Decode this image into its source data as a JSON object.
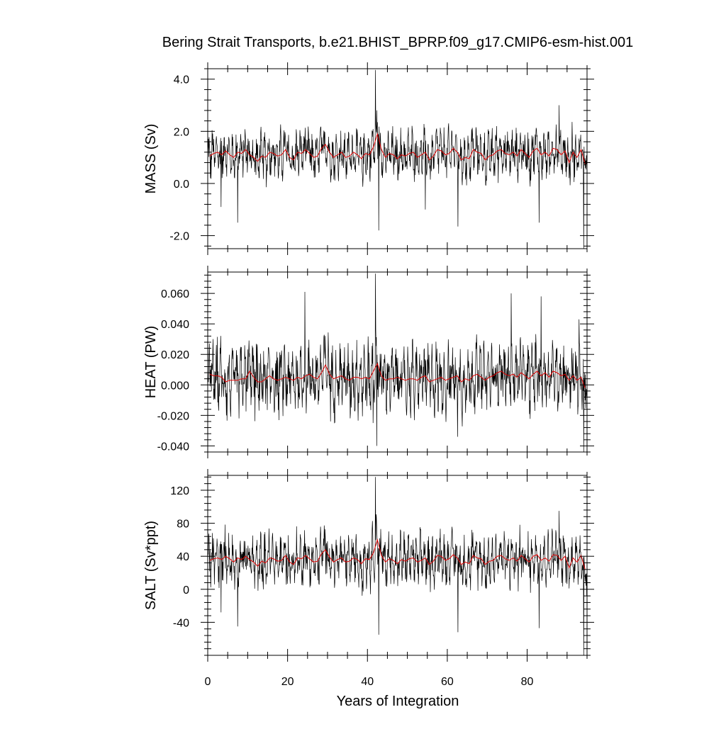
{
  "chart_data": {
    "type": "line",
    "title": "Bering Strait Transports, b.e21.BHIST_BPRP.f09_g17.CMIP6-esm-hist.001",
    "xlabel": "Years of Integration",
    "x_ticks": [
      "0",
      "20",
      "40",
      "60",
      "80"
    ],
    "xlim": [
      0,
      95
    ],
    "colors": {
      "monthly": "#000000",
      "annual": "#e00000"
    },
    "panels": [
      {
        "ylabel": "MASS (Sv)",
        "ylim": [
          -2.5,
          4.4
        ],
        "y_ticks": [
          {
            "v": 4.0,
            "label": "4.0"
          },
          {
            "v": 2.0,
            "label": "2.0"
          },
          {
            "v": 0.0,
            "label": "0.0"
          },
          {
            "v": -2.0,
            "label": "-2.0"
          }
        ],
        "annual": [
          1.05,
          1.15,
          1.2,
          1.1,
          1.25,
          1.1,
          1.0,
          1.2,
          1.15,
          1.3,
          1.1,
          1.0,
          0.85,
          1.05,
          1.0,
          1.2,
          1.15,
          1.05,
          1.1,
          1.3,
          1.0,
          0.9,
          1.2,
          1.15,
          1.3,
          1.15,
          1.0,
          1.05,
          1.35,
          1.5,
          1.2,
          1.0,
          1.1,
          1.2,
          1.0,
          1.05,
          1.2,
          1.1,
          0.95,
          1.15,
          1.1,
          1.4,
          1.9,
          1.3,
          1.0,
          1.15,
          1.1,
          0.95,
          1.1,
          1.05,
          1.15,
          1.2,
          1.0,
          1.1,
          1.2,
          0.9,
          1.05,
          1.3,
          1.25,
          1.1,
          1.15,
          1.35,
          1.2,
          0.9,
          1.0,
          0.95,
          1.3,
          1.2,
          1.15,
          0.9,
          1.05,
          1.1,
          1.25,
          1.3,
          1.15,
          1.1,
          1.2,
          1.05,
          1.3,
          1.15,
          1.0,
          1.25,
          1.35,
          1.1,
          1.2,
          1.05,
          1.35,
          1.3,
          1.1,
          1.25,
          0.8,
          1.2,
          1.0,
          1.3,
          0.75
        ],
        "monthly_spread": 0.6,
        "extremes": [
          {
            "x": 42.0,
            "v": 4.35
          },
          {
            "x": 42.4,
            "v": 1.9
          },
          {
            "x": 42.8,
            "v": -1.8
          },
          {
            "x": 7.5,
            "v": -1.5
          },
          {
            "x": 62.7,
            "v": -1.65
          },
          {
            "x": 83.0,
            "v": -1.5
          },
          {
            "x": 88.0,
            "v": 3.0
          },
          {
            "x": 94.2,
            "v": -2.5
          },
          {
            "x": 54.5,
            "v": -1.0
          },
          {
            "x": 3.3,
            "v": -0.9
          }
        ]
      },
      {
        "ylabel": "HEAT (PW)",
        "ylim": [
          -0.044,
          0.074
        ],
        "y_ticks": [
          {
            "v": 0.06,
            "label": "0.060"
          },
          {
            "v": 0.04,
            "label": "0.040"
          },
          {
            "v": 0.02,
            "label": "0.020"
          },
          {
            "v": 0.0,
            "label": "0.000"
          },
          {
            "v": -0.02,
            "label": "-0.020"
          },
          {
            "v": -0.04,
            "label": "-0.040"
          }
        ],
        "annual": [
          0.007,
          0.006,
          0.006,
          0.005,
          0.002,
          0.003,
          0.003,
          0.003,
          0.004,
          0.004,
          0.009,
          0.005,
          0.002,
          0.002,
          0.004,
          0.006,
          0.004,
          0.003,
          0.004,
          0.005,
          0.004,
          0.003,
          0.005,
          0.004,
          0.006,
          0.007,
          0.005,
          0.004,
          0.008,
          0.013,
          0.007,
          0.004,
          0.005,
          0.006,
          0.004,
          0.003,
          0.005,
          0.005,
          0.004,
          0.005,
          0.004,
          0.009,
          0.014,
          0.006,
          0.003,
          0.004,
          0.004,
          0.005,
          0.004,
          0.003,
          0.004,
          0.004,
          0.003,
          0.005,
          0.006,
          0.002,
          0.003,
          0.004,
          0.005,
          0.003,
          0.004,
          0.005,
          0.006,
          0.002,
          0.004,
          0.003,
          0.006,
          0.007,
          0.005,
          0.003,
          0.005,
          0.006,
          0.008,
          0.009,
          0.007,
          0.006,
          0.007,
          0.005,
          0.008,
          0.006,
          0.004,
          0.007,
          0.009,
          0.006,
          0.008,
          0.005,
          0.009,
          0.008,
          0.006,
          0.007,
          0.003,
          0.006,
          0.003,
          0.005,
          -0.002
        ],
        "monthly_spread": 0.015,
        "extremes": [
          {
            "x": 42.0,
            "v": 0.073
          },
          {
            "x": 42.3,
            "v": -0.04
          },
          {
            "x": 41.4,
            "v": -0.025
          },
          {
            "x": 24.3,
            "v": 0.061
          },
          {
            "x": 62.6,
            "v": -0.034
          },
          {
            "x": 94.2,
            "v": -0.044
          },
          {
            "x": 93.0,
            "v": 0.043
          },
          {
            "x": 76.0,
            "v": 0.06
          },
          {
            "x": 83.5,
            "v": 0.058
          }
        ]
      },
      {
        "ylabel": "SALT (Sv*ppt)",
        "ylim": [
          -80,
          138
        ],
        "y_ticks": [
          {
            "v": 120,
            "label": "120"
          },
          {
            "v": 80,
            "label": "80"
          },
          {
            "v": 40,
            "label": "40"
          },
          {
            "v": 0,
            "label": "0"
          },
          {
            "v": -40,
            "label": "-40"
          }
        ],
        "annual": [
          35,
          37,
          38,
          36,
          40,
          37,
          33,
          38,
          36,
          40,
          36,
          33,
          28,
          34,
          32,
          38,
          37,
          34,
          35,
          41,
          33,
          30,
          38,
          37,
          41,
          37,
          33,
          34,
          43,
          48,
          39,
          33,
          36,
          38,
          33,
          34,
          38,
          36,
          31,
          37,
          36,
          44,
          60,
          41,
          33,
          37,
          35,
          31,
          36,
          34,
          37,
          38,
          33,
          35,
          38,
          30,
          34,
          41,
          40,
          35,
          37,
          42,
          38,
          30,
          33,
          31,
          41,
          38,
          37,
          30,
          34,
          35,
          40,
          41,
          37,
          35,
          38,
          34,
          41,
          37,
          33,
          40,
          42,
          35,
          38,
          34,
          42,
          41,
          35,
          40,
          26,
          38,
          33,
          41,
          24
        ],
        "monthly_spread": 20,
        "extremes": [
          {
            "x": 42.0,
            "v": 136
          },
          {
            "x": 42.8,
            "v": -55
          },
          {
            "x": 7.5,
            "v": -45
          },
          {
            "x": 62.7,
            "v": -52
          },
          {
            "x": 83.0,
            "v": -47
          },
          {
            "x": 94.2,
            "v": -80
          },
          {
            "x": 88.0,
            "v": 95
          },
          {
            "x": 3.3,
            "v": -28
          }
        ]
      }
    ]
  }
}
